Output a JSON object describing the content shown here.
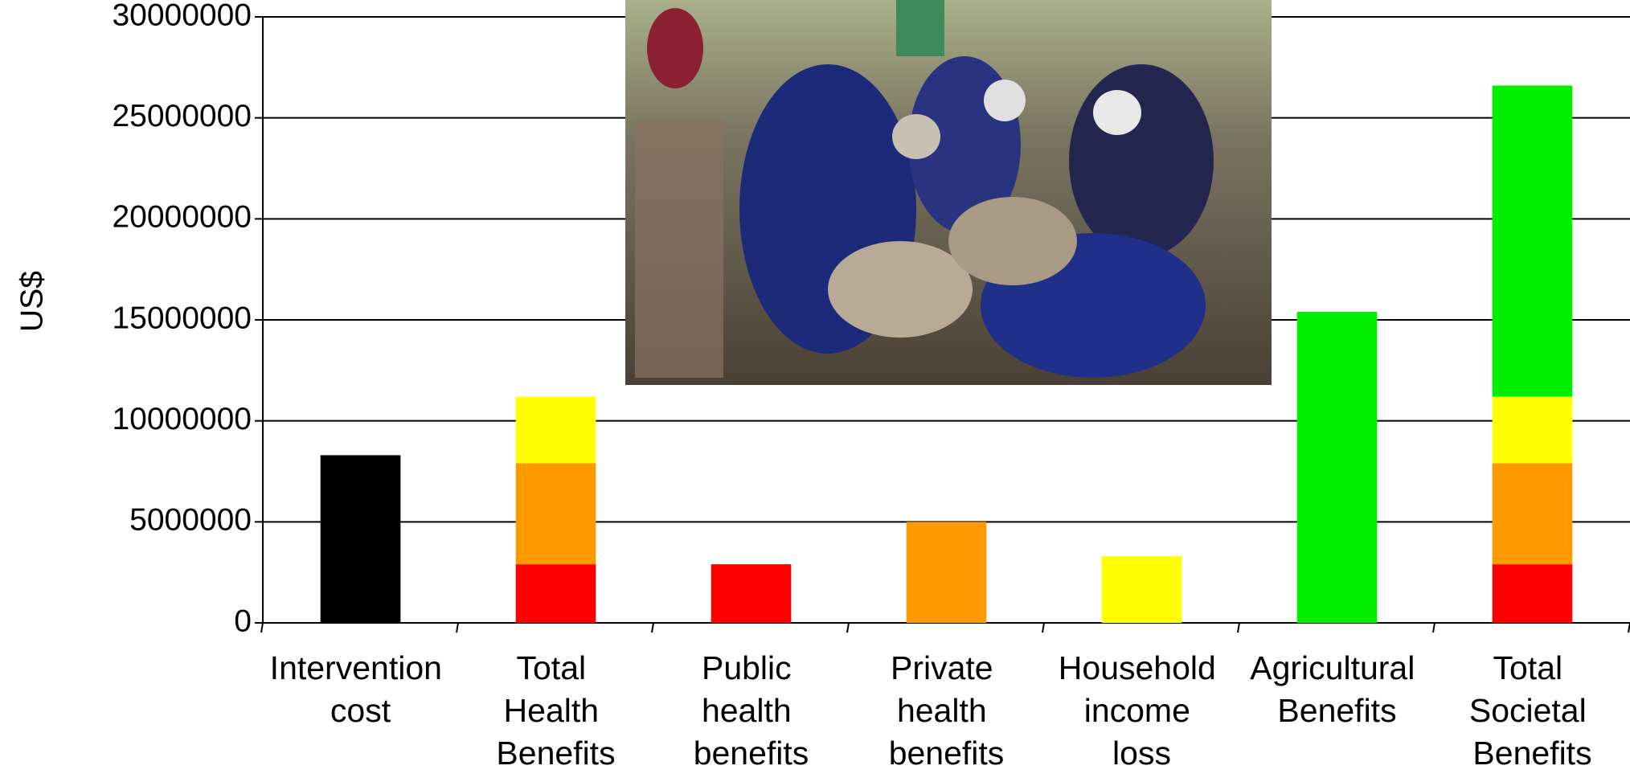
{
  "chart_data": {
    "type": "bar",
    "stacked": true,
    "y_label": "US$",
    "categories": [
      "Intervention cost",
      "Total Health Benefits",
      "Public health benefits",
      "Private health benefits",
      "Household income loss",
      "Agricultural Benefits",
      "Total Societal Benefits"
    ],
    "series": [
      {
        "color": "#000000",
        "values": [
          8300000,
          null,
          null,
          null,
          null,
          null,
          null
        ]
      },
      {
        "color": "#ff0000",
        "values": [
          null,
          2900000,
          2900000,
          null,
          null,
          null,
          2900000
        ]
      },
      {
        "color": "#ff9900",
        "values": [
          null,
          5000000,
          null,
          5000000,
          null,
          null,
          5000000
        ]
      },
      {
        "color": "#ffff00",
        "values": [
          null,
          3300000,
          null,
          null,
          3300000,
          null,
          3300000
        ]
      },
      {
        "color": "#00ee00",
        "values": [
          null,
          null,
          null,
          null,
          null,
          15400000,
          15400000
        ]
      }
    ],
    "ylim": [
      0,
      30000000
    ],
    "yticks": [
      0,
      5000000,
      10000000,
      15000000,
      20000000,
      25000000,
      30000000
    ],
    "grid": true
  }
}
